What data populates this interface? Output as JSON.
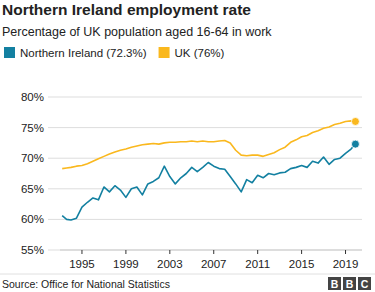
{
  "chart_data": {
    "type": "line",
    "title": "Northern Ireland employment rate",
    "subtitle": "Percentage of UK population aged 16-64 in work",
    "source": "Source: Office for National Statistics",
    "logo_text": "BBC",
    "x": [
      1993.2,
      1993.6,
      1994,
      1994.5,
      1995,
      1995.5,
      1996,
      1996.5,
      1997,
      1997.5,
      1998,
      1998.5,
      1999,
      1999.5,
      2000,
      2000.5,
      2001,
      2001.5,
      2002,
      2002.5,
      2003,
      2003.5,
      2004,
      2004.5,
      2005,
      2005.5,
      2006,
      2006.5,
      2007,
      2007.5,
      2008,
      2008.5,
      2009,
      2009.5,
      2010,
      2010.5,
      2011,
      2011.5,
      2012,
      2012.5,
      2013,
      2013.5,
      2014,
      2014.5,
      2015,
      2015.5,
      2016,
      2016.5,
      2017,
      2017.5,
      2018,
      2018.5,
      2019,
      2019.5,
      2019.9
    ],
    "series": [
      {
        "name": "Northern Ireland (72.3%)",
        "color": "#1380a1",
        "marker": "end-dot",
        "values": [
          60.6,
          60.0,
          59.9,
          60.2,
          62.0,
          62.8,
          63.5,
          63.2,
          65.3,
          64.5,
          65.5,
          64.8,
          63.6,
          65.0,
          65.3,
          64.0,
          65.8,
          66.2,
          66.8,
          68.7,
          67.0,
          65.8,
          66.8,
          67.5,
          68.5,
          67.8,
          68.5,
          69.3,
          68.7,
          68.3,
          68.2,
          67.0,
          65.8,
          64.5,
          66.5,
          66.0,
          67.2,
          66.8,
          67.5,
          67.3,
          67.6,
          67.7,
          68.3,
          68.5,
          68.8,
          68.5,
          69.5,
          69.2,
          70.2,
          69.0,
          69.8,
          70.0,
          70.8,
          71.5,
          72.3
        ]
      },
      {
        "name": "UK (76%)",
        "color": "#fab81e",
        "marker": "end-dot",
        "values": [
          68.3,
          68.4,
          68.5,
          68.7,
          68.8,
          69.1,
          69.5,
          69.9,
          70.3,
          70.7,
          71.0,
          71.3,
          71.5,
          71.8,
          72.0,
          72.2,
          72.3,
          72.4,
          72.3,
          72.5,
          72.6,
          72.6,
          72.7,
          72.7,
          72.8,
          72.7,
          72.8,
          72.7,
          72.7,
          72.8,
          72.9,
          72.5,
          71.3,
          70.5,
          70.4,
          70.5,
          70.5,
          70.3,
          70.6,
          70.9,
          71.4,
          71.8,
          72.6,
          73.0,
          73.5,
          73.7,
          74.2,
          74.5,
          74.9,
          75.1,
          75.5,
          75.7,
          76.0,
          76.1,
          76.0
        ]
      }
    ],
    "xlim": [
      1993,
      2020.5
    ],
    "xticks": [
      1995,
      1999,
      2003,
      2007,
      2011,
      2015,
      2019
    ],
    "ylim": [
      55,
      80
    ],
    "yticks": [
      {
        "value": 55,
        "label": "55%"
      },
      {
        "value": 60,
        "label": "60%"
      },
      {
        "value": 65,
        "label": "65%"
      },
      {
        "value": 70,
        "label": "70%"
      },
      {
        "value": 75,
        "label": "75%"
      },
      {
        "value": 80,
        "label": "80%"
      }
    ],
    "grid": true,
    "legend": "top-left"
  }
}
